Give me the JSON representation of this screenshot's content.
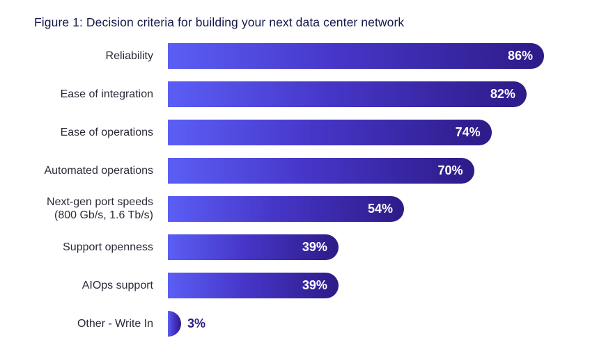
{
  "chart_data": {
    "type": "bar",
    "orientation": "horizontal",
    "title": "Figure 1: Decision criteria for building your next data center network",
    "categories": [
      [
        "Reliability"
      ],
      [
        "Ease of integration"
      ],
      [
        "Ease of operations"
      ],
      [
        "Automated operations"
      ],
      [
        "Next-gen port speeds",
        "(800 Gb/s, 1.6 Tb/s)"
      ],
      [
        "Support openness"
      ],
      [
        "AIOps support"
      ],
      [
        "Other - Write In"
      ]
    ],
    "values": [
      86,
      82,
      74,
      70,
      54,
      39,
      39,
      3
    ],
    "value_labels": [
      "86%",
      "82%",
      "74%",
      "70%",
      "54%",
      "39%",
      "39%",
      "3%"
    ],
    "xlim": [
      0,
      100
    ],
    "grid": false,
    "colors": {
      "bar_start": "#5b5ef5",
      "bar_end": "#2d1b87",
      "outside_label": "#2d1b87"
    }
  }
}
